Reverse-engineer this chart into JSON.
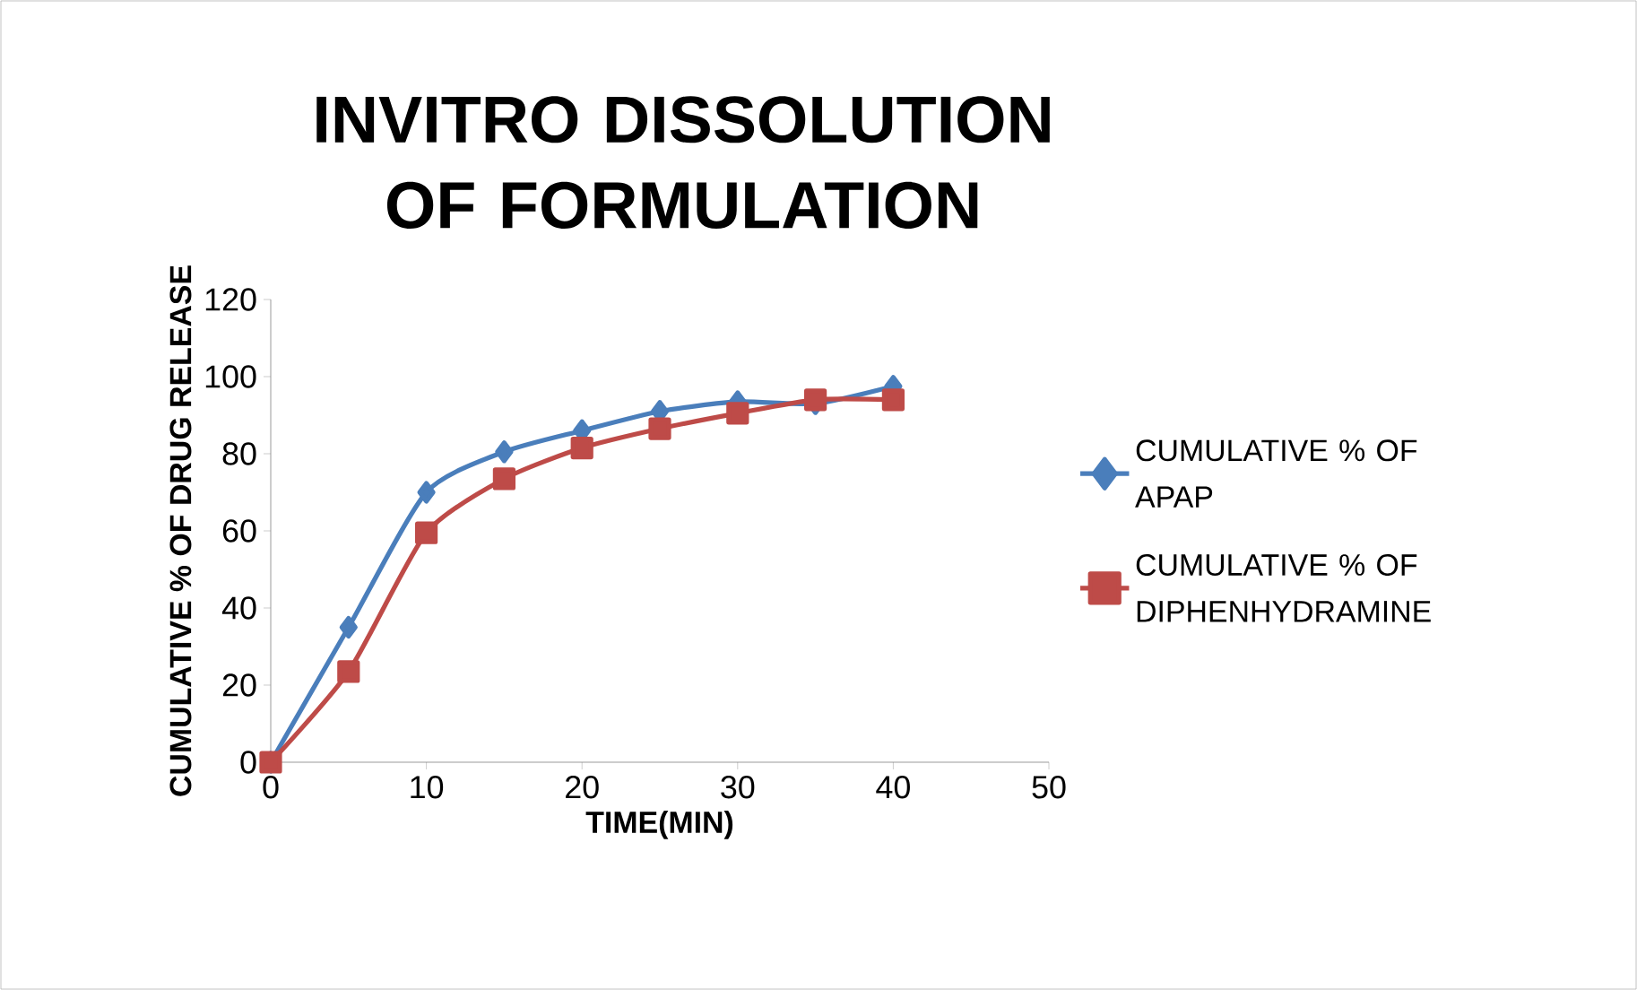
{
  "chart_data": {
    "type": "line",
    "title": "INVITRO DISSOLUTION OF FORMULATION",
    "xlabel": "TIME(MIN)",
    "ylabel": "CUMULATIVE % OF DRUG RELEASE",
    "x": [
      0,
      5,
      10,
      15,
      20,
      25,
      30,
      35,
      40
    ],
    "series": [
      {
        "name": "CUMULATIVE % OF APAP",
        "color": "#4a7ebb",
        "marker": "diamond",
        "values": [
          0,
          35,
          70,
          80.5,
          86,
          91,
          93.5,
          93,
          97.5
        ]
      },
      {
        "name": "CUMULATIVE % OF DIPHENHYDRAMINE",
        "color": "#be4b48",
        "marker": "square",
        "values": [
          0,
          23.5,
          59.5,
          73.5,
          81.5,
          86.5,
          90.5,
          94,
          94
        ]
      }
    ],
    "xlim": [
      0,
      50
    ],
    "xticks": [
      0,
      10,
      20,
      30,
      40,
      50
    ],
    "ylim": [
      0,
      120
    ],
    "yticks": [
      0,
      20,
      40,
      60,
      80,
      100,
      120
    ],
    "legend": "right",
    "grid": false,
    "line_style": "solid"
  }
}
